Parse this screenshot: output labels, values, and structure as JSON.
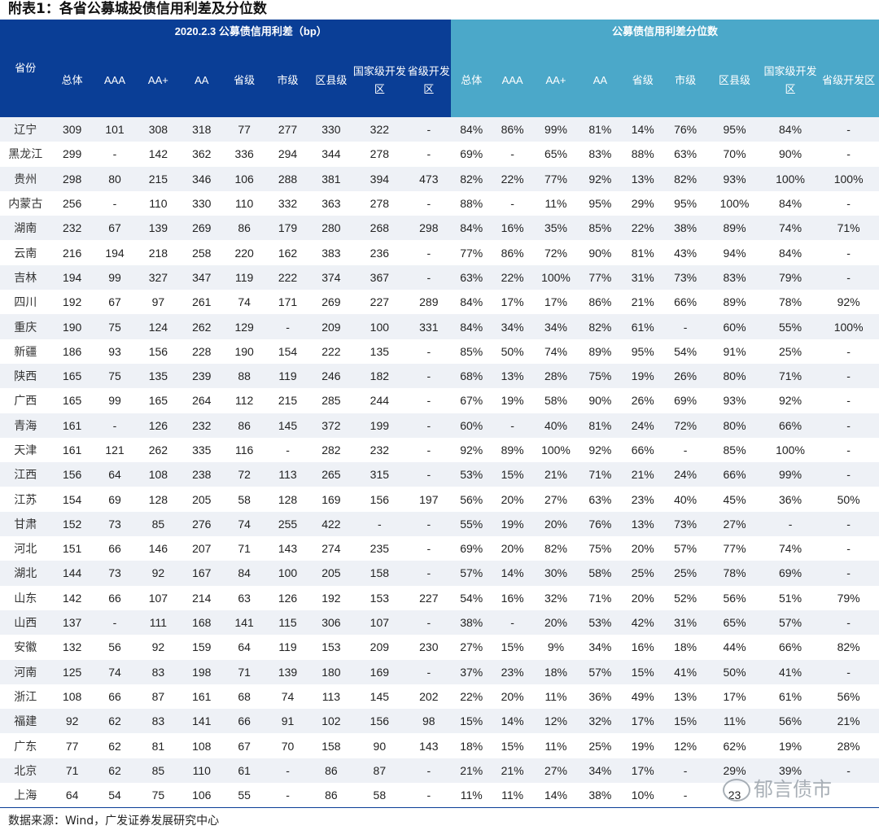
{
  "title": "附表1：各省公募城投债信用利差及分位数",
  "group_headers": {
    "spread": "2020.2.3 公募债信用利差（bp）",
    "percentile": "公募债信用利差分位数"
  },
  "province_header": "省份",
  "spread_columns": [
    "总体",
    "AAA",
    "AA+",
    "AA",
    "省级",
    "市级",
    "区县级",
    "国家级开发区",
    "省级开发区"
  ],
  "percentile_columns": [
    "总体",
    "AAA",
    "AA+",
    "AA",
    "省级",
    "市级",
    "区县级",
    "国家级开发区",
    "省级开发区"
  ],
  "rows": [
    {
      "province": "辽宁",
      "spread": [
        "309",
        "101",
        "308",
        "318",
        "77",
        "277",
        "330",
        "322",
        "-"
      ],
      "pct": [
        "84%",
        "86%",
        "99%",
        "81%",
        "14%",
        "76%",
        "95%",
        "84%",
        "-"
      ]
    },
    {
      "province": "黑龙江",
      "spread": [
        "299",
        "-",
        "142",
        "362",
        "336",
        "294",
        "344",
        "278",
        "-"
      ],
      "pct": [
        "69%",
        "-",
        "65%",
        "83%",
        "88%",
        "63%",
        "70%",
        "90%",
        "-"
      ]
    },
    {
      "province": "贵州",
      "spread": [
        "298",
        "80",
        "215",
        "346",
        "106",
        "288",
        "381",
        "394",
        "473"
      ],
      "pct": [
        "82%",
        "22%",
        "77%",
        "92%",
        "13%",
        "82%",
        "93%",
        "100%",
        "100%"
      ]
    },
    {
      "province": "内蒙古",
      "spread": [
        "256",
        "-",
        "110",
        "330",
        "110",
        "332",
        "363",
        "278",
        "-"
      ],
      "pct": [
        "88%",
        "-",
        "11%",
        "95%",
        "29%",
        "95%",
        "100%",
        "84%",
        "-"
      ]
    },
    {
      "province": "湖南",
      "spread": [
        "232",
        "67",
        "139",
        "269",
        "86",
        "179",
        "280",
        "268",
        "298"
      ],
      "pct": [
        "84%",
        "16%",
        "35%",
        "85%",
        "22%",
        "38%",
        "89%",
        "74%",
        "71%"
      ]
    },
    {
      "province": "云南",
      "spread": [
        "216",
        "194",
        "218",
        "258",
        "220",
        "162",
        "383",
        "236",
        "-"
      ],
      "pct": [
        "77%",
        "86%",
        "72%",
        "90%",
        "81%",
        "43%",
        "94%",
        "84%",
        "-"
      ]
    },
    {
      "province": "吉林",
      "spread": [
        "194",
        "99",
        "327",
        "347",
        "119",
        "222",
        "374",
        "367",
        "-"
      ],
      "pct": [
        "63%",
        "22%",
        "100%",
        "77%",
        "31%",
        "73%",
        "83%",
        "79%",
        "-"
      ]
    },
    {
      "province": "四川",
      "spread": [
        "192",
        "67",
        "97",
        "261",
        "74",
        "171",
        "269",
        "227",
        "289"
      ],
      "pct": [
        "84%",
        "17%",
        "17%",
        "86%",
        "21%",
        "66%",
        "89%",
        "78%",
        "92%"
      ]
    },
    {
      "province": "重庆",
      "spread": [
        "190",
        "75",
        "124",
        "262",
        "129",
        "-",
        "209",
        "100",
        "331"
      ],
      "pct": [
        "84%",
        "34%",
        "34%",
        "82%",
        "61%",
        "-",
        "60%",
        "55%",
        "100%"
      ]
    },
    {
      "province": "新疆",
      "spread": [
        "186",
        "93",
        "156",
        "228",
        "190",
        "154",
        "222",
        "135",
        "-"
      ],
      "pct": [
        "85%",
        "50%",
        "74%",
        "89%",
        "95%",
        "54%",
        "91%",
        "25%",
        "-"
      ]
    },
    {
      "province": "陕西",
      "spread": [
        "165",
        "75",
        "135",
        "239",
        "88",
        "119",
        "246",
        "182",
        "-"
      ],
      "pct": [
        "68%",
        "13%",
        "28%",
        "75%",
        "19%",
        "26%",
        "80%",
        "71%",
        "-"
      ]
    },
    {
      "province": "广西",
      "spread": [
        "165",
        "99",
        "165",
        "264",
        "112",
        "215",
        "285",
        "244",
        "-"
      ],
      "pct": [
        "67%",
        "19%",
        "58%",
        "90%",
        "26%",
        "69%",
        "93%",
        "92%",
        "-"
      ]
    },
    {
      "province": "青海",
      "spread": [
        "161",
        "-",
        "126",
        "232",
        "86",
        "145",
        "372",
        "199",
        "-"
      ],
      "pct": [
        "60%",
        "-",
        "40%",
        "81%",
        "24%",
        "72%",
        "80%",
        "66%",
        "-"
      ]
    },
    {
      "province": "天津",
      "spread": [
        "161",
        "121",
        "262",
        "335",
        "116",
        "-",
        "282",
        "232",
        "-"
      ],
      "pct": [
        "92%",
        "89%",
        "100%",
        "92%",
        "66%",
        "-",
        "85%",
        "100%",
        "-"
      ]
    },
    {
      "province": "江西",
      "spread": [
        "156",
        "64",
        "108",
        "238",
        "72",
        "113",
        "265",
        "315",
        "-"
      ],
      "pct": [
        "53%",
        "15%",
        "21%",
        "71%",
        "21%",
        "24%",
        "66%",
        "99%",
        "-"
      ]
    },
    {
      "province": "江苏",
      "spread": [
        "154",
        "69",
        "128",
        "205",
        "58",
        "128",
        "169",
        "156",
        "197"
      ],
      "pct": [
        "56%",
        "20%",
        "27%",
        "63%",
        "23%",
        "40%",
        "45%",
        "36%",
        "50%"
      ]
    },
    {
      "province": "甘肃",
      "spread": [
        "152",
        "73",
        "85",
        "276",
        "74",
        "255",
        "422",
        "-",
        "-"
      ],
      "pct": [
        "55%",
        "19%",
        "20%",
        "76%",
        "13%",
        "73%",
        "27%",
        "-",
        "-"
      ]
    },
    {
      "province": "河北",
      "spread": [
        "151",
        "66",
        "146",
        "207",
        "71",
        "143",
        "274",
        "235",
        "-"
      ],
      "pct": [
        "69%",
        "20%",
        "82%",
        "75%",
        "20%",
        "57%",
        "77%",
        "74%",
        "-"
      ]
    },
    {
      "province": "湖北",
      "spread": [
        "144",
        "73",
        "92",
        "167",
        "84",
        "100",
        "205",
        "158",
        "-"
      ],
      "pct": [
        "57%",
        "14%",
        "30%",
        "58%",
        "25%",
        "25%",
        "78%",
        "69%",
        "-"
      ]
    },
    {
      "province": "山东",
      "spread": [
        "142",
        "66",
        "107",
        "214",
        "63",
        "126",
        "192",
        "153",
        "227"
      ],
      "pct": [
        "54%",
        "16%",
        "32%",
        "71%",
        "20%",
        "52%",
        "56%",
        "51%",
        "79%"
      ]
    },
    {
      "province": "山西",
      "spread": [
        "137",
        "-",
        "111",
        "168",
        "141",
        "115",
        "306",
        "107",
        "-"
      ],
      "pct": [
        "38%",
        "-",
        "20%",
        "53%",
        "42%",
        "31%",
        "65%",
        "57%",
        "-"
      ]
    },
    {
      "province": "安徽",
      "spread": [
        "132",
        "56",
        "92",
        "159",
        "64",
        "119",
        "153",
        "209",
        "230"
      ],
      "pct": [
        "27%",
        "15%",
        "9%",
        "34%",
        "16%",
        "18%",
        "44%",
        "66%",
        "82%"
      ]
    },
    {
      "province": "河南",
      "spread": [
        "125",
        "74",
        "83",
        "198",
        "71",
        "139",
        "180",
        "169",
        "-"
      ],
      "pct": [
        "37%",
        "23%",
        "18%",
        "57%",
        "15%",
        "41%",
        "50%",
        "41%",
        "-"
      ]
    },
    {
      "province": "浙江",
      "spread": [
        "108",
        "66",
        "87",
        "161",
        "68",
        "74",
        "113",
        "145",
        "202"
      ],
      "pct": [
        "22%",
        "20%",
        "11%",
        "36%",
        "49%",
        "13%",
        "17%",
        "61%",
        "56%"
      ]
    },
    {
      "province": "福建",
      "spread": [
        "92",
        "62",
        "83",
        "141",
        "66",
        "91",
        "102",
        "156",
        "98"
      ],
      "pct": [
        "15%",
        "14%",
        "12%",
        "32%",
        "17%",
        "15%",
        "11%",
        "56%",
        "21%"
      ]
    },
    {
      "province": "广东",
      "spread": [
        "77",
        "62",
        "81",
        "108",
        "67",
        "70",
        "158",
        "90",
        "143"
      ],
      "pct": [
        "18%",
        "15%",
        "11%",
        "25%",
        "19%",
        "12%",
        "62%",
        "19%",
        "28%"
      ]
    },
    {
      "province": "北京",
      "spread": [
        "71",
        "62",
        "85",
        "110",
        "61",
        "-",
        "86",
        "87",
        "-"
      ],
      "pct": [
        "21%",
        "21%",
        "27%",
        "34%",
        "17%",
        "-",
        "29%",
        "39%",
        "-"
      ]
    },
    {
      "province": "上海",
      "spread": [
        "64",
        "54",
        "75",
        "106",
        "55",
        "-",
        "86",
        "58",
        "-"
      ],
      "pct": [
        "11%",
        "11%",
        "14%",
        "38%",
        "10%",
        "-",
        "23",
        "",
        ""
      ]
    }
  ],
  "source": "数据来源：Wind，广发证券发展研究中心",
  "watermark": "郁言债市"
}
